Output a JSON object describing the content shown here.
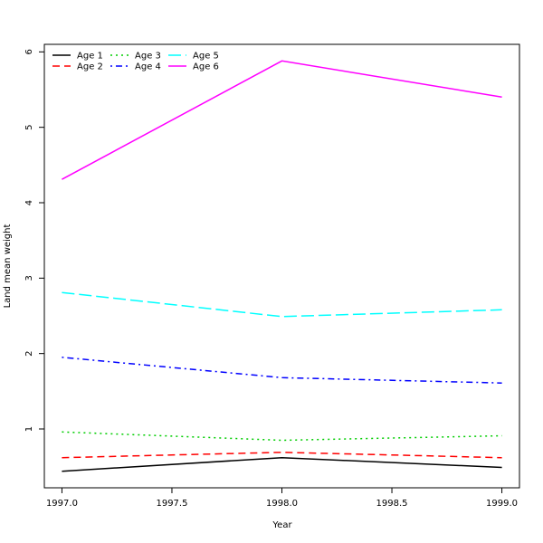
{
  "chart_data": {
    "type": "line",
    "xlabel": "Year",
    "ylabel": "Land mean weight",
    "xlim": [
      1996.92,
      1999.08
    ],
    "ylim": [
      0.22,
      6.1
    ],
    "x_ticks": [
      "1997.0",
      "1997.5",
      "1998.0",
      "1998.5",
      "1999.0"
    ],
    "y_ticks": [
      "1",
      "2",
      "3",
      "4",
      "5",
      "6"
    ],
    "grid": false,
    "legend_position": "top-left",
    "x": [
      1997.0,
      1998.0,
      1999.0
    ],
    "series": [
      {
        "name": "Age 1",
        "color": "#000000",
        "dash": "solid",
        "values": [
          0.44,
          0.62,
          0.49
        ]
      },
      {
        "name": "Age 2",
        "color": "#ff0000",
        "dash": "dashed",
        "values": [
          0.62,
          0.69,
          0.62
        ]
      },
      {
        "name": "Age 3",
        "color": "#00cd00",
        "dash": "dotted",
        "values": [
          0.96,
          0.85,
          0.91
        ]
      },
      {
        "name": "Age 4",
        "color": "#0000ff",
        "dash": "dotdash",
        "values": [
          1.95,
          1.68,
          1.61
        ]
      },
      {
        "name": "Age 5",
        "color": "#00ffff",
        "dash": "longdash",
        "values": [
          2.81,
          2.49,
          2.58
        ]
      },
      {
        "name": "Age 6",
        "color": "#ff00ff",
        "dash": "solid",
        "values": [
          4.31,
          5.88,
          5.4
        ]
      }
    ]
  }
}
